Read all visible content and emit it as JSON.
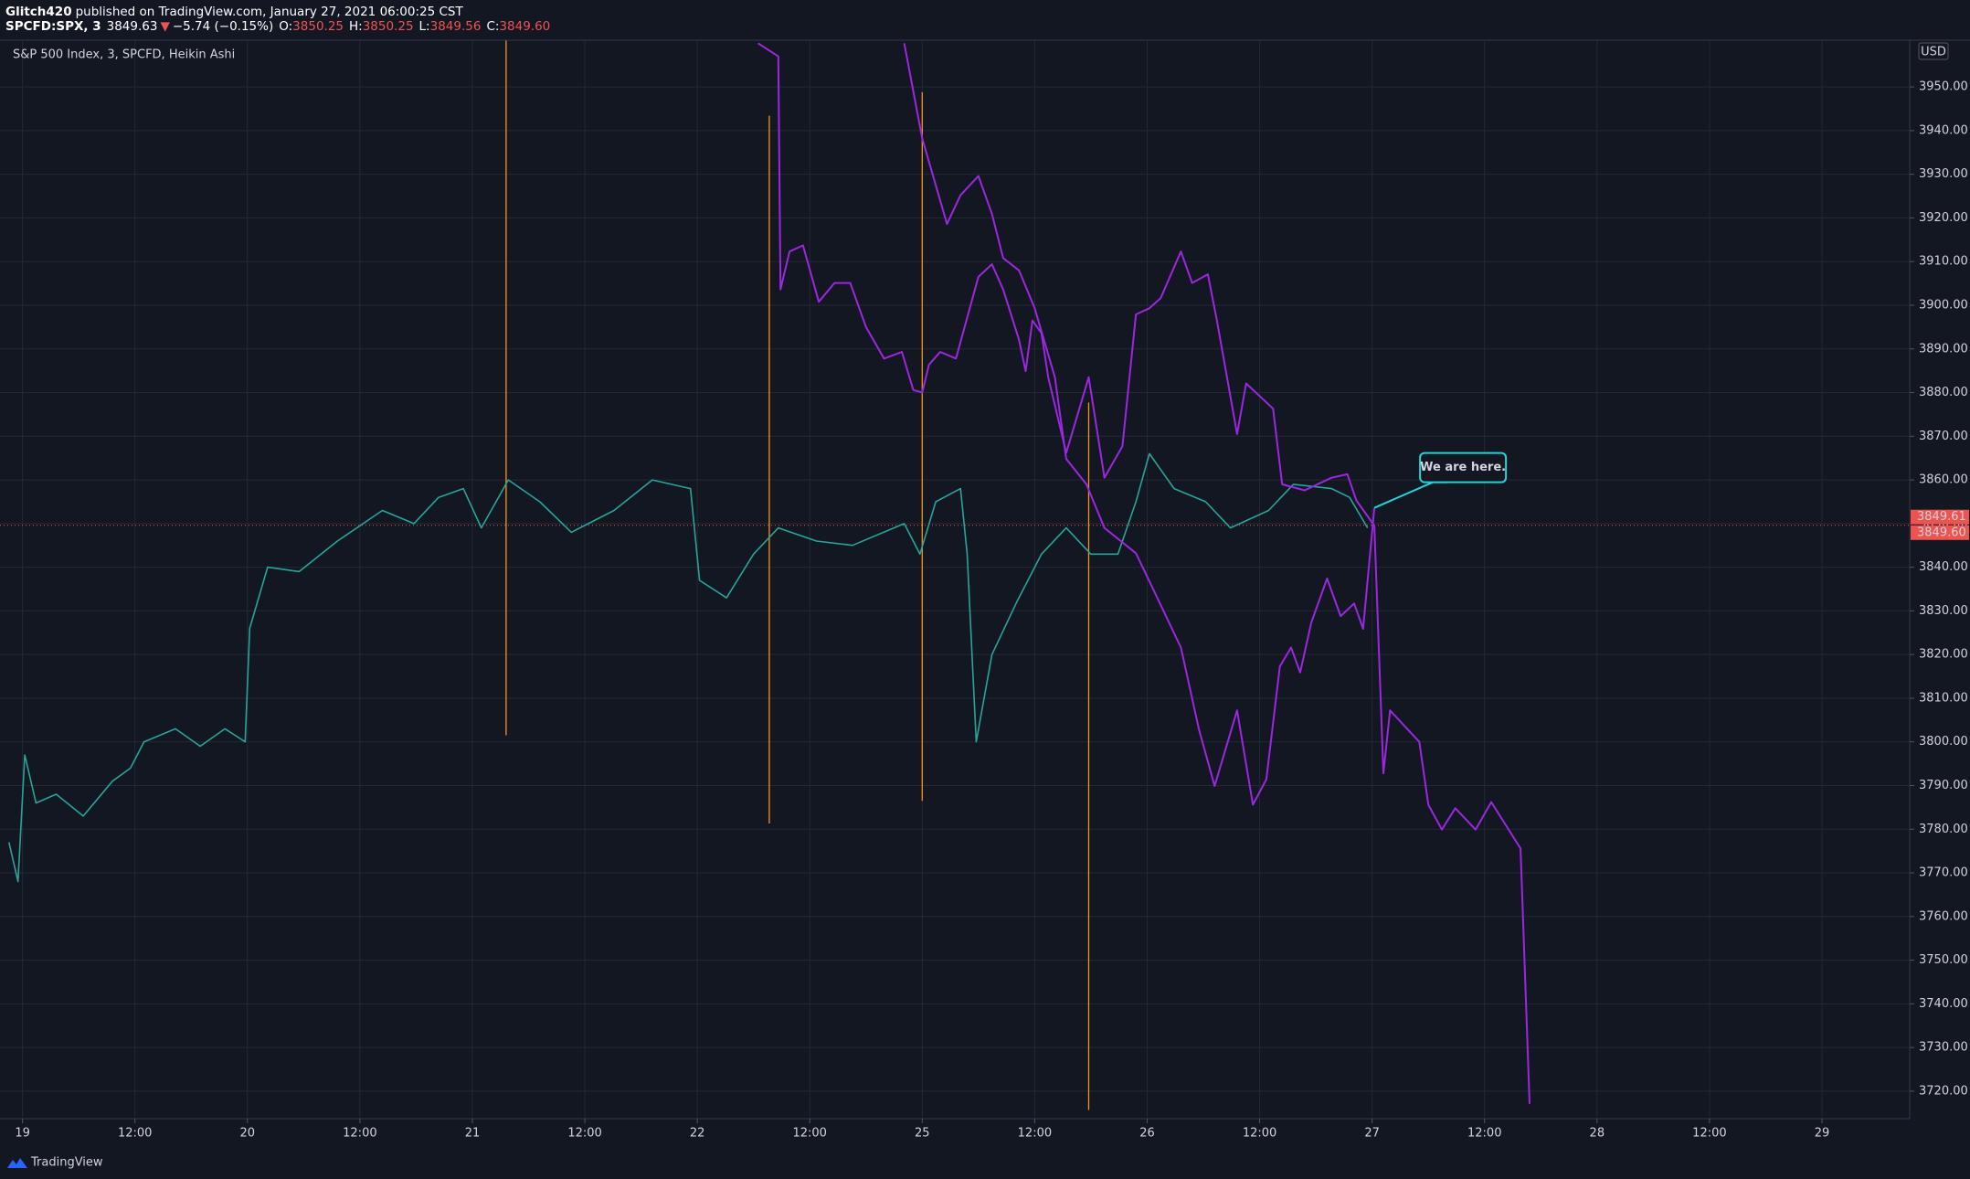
{
  "header": {
    "publisher": "Glitch420",
    "published": "published on TradingView.com, January 27, 2021 06:00:25 CST",
    "symbol": "SPCFD:SPX, 3",
    "last": "3849.63",
    "arrow": "▼",
    "change": "−5.74 (−0.15%)",
    "o_label": "O:",
    "open": "3850.25",
    "h_label": "H:",
    "high": "3850.25",
    "l_label": "L:",
    "low": "3849.56",
    "c_label": "C:",
    "close": "3849.60"
  },
  "footer": {
    "brand": "TradingView"
  },
  "chart_data": {
    "type": "line",
    "title": "S&P 500 Index, 3, SPCFD, Heikin Ashi",
    "y_unit": "USD",
    "xlim": [
      -0.1,
      8.39
    ],
    "ylim": [
      3713.7,
      3960.7
    ],
    "grid": true,
    "xticks": [
      {
        "value": 0,
        "label": "19"
      },
      {
        "value": 0.5,
        "label": "12:00"
      },
      {
        "value": 1,
        "label": "20"
      },
      {
        "value": 1.5,
        "label": "12:00"
      },
      {
        "value": 2,
        "label": "21"
      },
      {
        "value": 2.5,
        "label": "12:00"
      },
      {
        "value": 3,
        "label": "22"
      },
      {
        "value": 3.5,
        "label": "12:00"
      },
      {
        "value": 4,
        "label": "25"
      },
      {
        "value": 4.5,
        "label": "12:00"
      },
      {
        "value": 5,
        "label": "26"
      },
      {
        "value": 5.5,
        "label": "12:00"
      },
      {
        "value": 6,
        "label": "27"
      },
      {
        "value": 6.5,
        "label": "12:00"
      },
      {
        "value": 7,
        "label": "28"
      },
      {
        "value": 7.5,
        "label": "12:00"
      },
      {
        "value": 8,
        "label": "29"
      }
    ],
    "yticks": [
      {
        "value": 3720,
        "label": "3720.00"
      },
      {
        "value": 3730,
        "label": "3730.00"
      },
      {
        "value": 3740,
        "label": "3740.00"
      },
      {
        "value": 3750,
        "label": "3750.00"
      },
      {
        "value": 3760,
        "label": "3760.00"
      },
      {
        "value": 3770,
        "label": "3770.00"
      },
      {
        "value": 3780,
        "label": "3780.00"
      },
      {
        "value": 3790,
        "label": "3790.00"
      },
      {
        "value": 3800,
        "label": "3800.00"
      },
      {
        "value": 3810,
        "label": "3810.00"
      },
      {
        "value": 3820,
        "label": "3820.00"
      },
      {
        "value": 3830,
        "label": "3830.00"
      },
      {
        "value": 3840,
        "label": "3840.00"
      },
      {
        "value": 3850,
        "label": "3850.00"
      },
      {
        "value": 3860,
        "label": "3860.00"
      },
      {
        "value": 3870,
        "label": "3870.00"
      },
      {
        "value": 3880,
        "label": "3880.00"
      },
      {
        "value": 3890,
        "label": "3890.00"
      },
      {
        "value": 3900,
        "label": "3900.00"
      },
      {
        "value": 3910,
        "label": "3910.00"
      },
      {
        "value": 3920,
        "label": "3920.00"
      },
      {
        "value": 3930,
        "label": "3930.00"
      },
      {
        "value": 3940,
        "label": "3940.00"
      },
      {
        "value": 3950,
        "label": "3950.00"
      }
    ],
    "series": [
      {
        "color": "#26a69a",
        "x": [
          -0.06,
          -0.02,
          0.01,
          0.06,
          0.15,
          0.27,
          0.4,
          0.48,
          0.54,
          0.68,
          0.79,
          0.9,
          0.99,
          1.01,
          1.09,
          1.23,
          1.4,
          1.6,
          1.74,
          1.85,
          1.96,
          2.04,
          2.16,
          2.3,
          2.44,
          2.63,
          2.8,
          2.97,
          3.01,
          3.13,
          3.25,
          3.36,
          3.53,
          3.69,
          3.92,
          3.99,
          4.06,
          4.17,
          4.2,
          4.24,
          4.31,
          4.42,
          4.53,
          4.64,
          4.75,
          4.87,
          4.95,
          5.01,
          5.12,
          5.26,
          5.37,
          5.54,
          5.65,
          5.82,
          5.9,
          5.98
        ],
        "values": [
          3777,
          3768,
          3797,
          3786,
          3788,
          3783,
          3791,
          3794,
          3800,
          3803,
          3799,
          3803,
          3800,
          3826,
          3840,
          3839,
          3846,
          3853,
          3850,
          3856,
          3858,
          3849,
          3860,
          3855,
          3848,
          3853,
          3860,
          3858,
          3837,
          3833,
          3843,
          3849,
          3846,
          3845,
          3850,
          3843,
          3855,
          3858,
          3843,
          3800,
          3820,
          3832,
          3843,
          3849,
          3843,
          3843,
          3855,
          3866,
          3858,
          3855,
          3849,
          3853,
          3859,
          3858,
          3856,
          3849
        ]
      },
      {
        "color": "#9c27e0",
        "x": [
          3.27,
          3.36,
          3.37,
          3.41,
          3.47,
          3.54,
          3.61,
          3.68,
          3.75,
          3.83,
          3.91,
          3.96,
          4.0,
          4.03,
          4.08,
          4.15,
          4.25,
          4.31,
          4.36,
          4.43,
          4.46,
          4.49,
          4.53,
          4.56,
          4.64,
          4.74,
          4.81,
          4.89,
          4.95,
          5.01,
          5.06,
          5.15,
          5.2,
          5.27,
          5.31,
          5.4,
          5.44,
          5.56,
          5.6,
          5.7,
          5.82,
          5.89,
          5.93,
          6.01,
          6.05,
          6.08,
          6.21,
          6.25,
          6.31,
          6.37,
          6.46,
          6.53,
          6.59,
          6.66,
          6.7
        ],
        "values": [
          3960,
          3957,
          3903.6,
          3912.3,
          3913.7,
          3900.8,
          3905.1,
          3905.1,
          3895,
          3887.8,
          3889.3,
          3880.6,
          3880,
          3886.4,
          3889.3,
          3887.8,
          3906.5,
          3909.4,
          3903.6,
          3892.1,
          3884.9,
          3896.5,
          3893.6,
          3883.5,
          3866.2,
          3883.5,
          3860.5,
          3867.7,
          3897.9,
          3899.3,
          3901.6,
          3912.3,
          3905.1,
          3907.1,
          3896.5,
          3870.5,
          3882.1,
          3876.3,
          3859,
          3857.6,
          3860.5,
          3861.3,
          3855.3,
          3849.5,
          3792.8,
          3807.2,
          3800,
          3785.6,
          3779.9,
          3784.8,
          3779.9,
          3786.2,
          3781.3,
          3775.6,
          3717.1
        ]
      },
      {
        "color": "#9c27e0",
        "x": [
          3.92,
          4.0,
          4.11,
          4.17,
          4.25,
          4.31,
          4.36,
          4.43,
          4.5,
          4.59,
          4.64,
          4.73,
          4.81,
          4.95,
          5.03,
          5.15,
          5.23,
          5.3,
          5.4,
          5.47,
          5.53,
          5.59,
          5.64,
          5.68,
          5.73,
          5.8,
          5.86,
          5.92,
          5.96,
          6.01
        ],
        "values": [
          3960,
          3938.2,
          3918.6,
          3925.2,
          3929.6,
          3920.9,
          3910.8,
          3908,
          3899.3,
          3883.5,
          3864.8,
          3859,
          3849,
          3843.2,
          3834.6,
          3821.6,
          3802.9,
          3789.9,
          3807.2,
          3785.6,
          3791.4,
          3817.3,
          3821.6,
          3815.9,
          3827.4,
          3837.4,
          3828.8,
          3831.7,
          3825.9,
          3853.6
        ]
      }
    ],
    "vlines": [
      {
        "x": 2.15,
        "y": [
          3801.5,
          3960.6
        ],
        "color": "#f7931a"
      },
      {
        "x": 3.32,
        "y": [
          3781.3,
          3943.4
        ],
        "color": "#f7931a"
      },
      {
        "x": 4.0,
        "y": [
          3786.5,
          3948.8
        ],
        "color": "#f7931a"
      },
      {
        "x": 4.74,
        "y": [
          3715.7,
          3877.7
        ],
        "color": "#f7931a"
      }
    ],
    "price_line": {
      "value": 3849.61,
      "color": "#ef5350"
    },
    "price_labels": [
      3849.61,
      {
        "value": 3849.6,
        "label": "3849.60"
      }
    ],
    "annotation": {
      "text": "We are here.",
      "x": 6.01,
      "y": 3853.6,
      "color": "#22d3d8"
    }
  }
}
